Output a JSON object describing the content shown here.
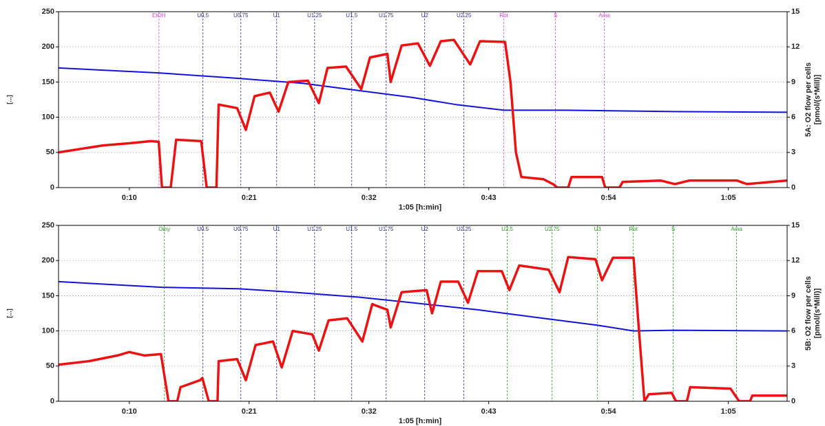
{
  "chart_data": [
    {
      "type": "line",
      "x_label": "1:05 [h:min]",
      "y_label": "[...]",
      "y2_label": [
        "5A: O2 flow per cells",
        "[pmol/(s*Mill)]"
      ],
      "xlim": [
        3.5,
        70.4
      ],
      "xticks": [
        {
          "value": 10,
          "label": "0:10"
        },
        {
          "value": 21,
          "label": "0:21"
        },
        {
          "value": 32,
          "label": "0:32"
        },
        {
          "value": 43,
          "label": "0:43"
        },
        {
          "value": 54,
          "label": "0:54"
        },
        {
          "value": 65,
          "label": "1:05"
        }
      ],
      "ylim": [
        0,
        250
      ],
      "yticks": [
        0,
        50,
        100,
        150,
        200,
        250
      ],
      "y2lim": [
        0,
        15
      ],
      "y2ticks": [
        0,
        3,
        6,
        9,
        12,
        15
      ],
      "grid": true,
      "events": [
        {
          "x": 12.72,
          "label": "EtOH",
          "color": "#e040e0"
        },
        {
          "x": 16.76,
          "label": "U0.5",
          "color": "#303090"
        },
        {
          "x": 20.24,
          "label": "U0.75",
          "color": "#303090"
        },
        {
          "x": 23.53,
          "label": "U1",
          "color": "#303090"
        },
        {
          "x": 27.01,
          "label": "U1.25",
          "color": "#303090"
        },
        {
          "x": 30.42,
          "label": "U1.5",
          "color": "#303090"
        },
        {
          "x": 33.58,
          "label": "U1.75",
          "color": "#303090"
        },
        {
          "x": 37.12,
          "label": "U2",
          "color": "#303090"
        },
        {
          "x": 40.72,
          "label": "U2.25",
          "color": "#303090"
        },
        {
          "x": 44.39,
          "label": "Rot",
          "color": "#e040e0"
        },
        {
          "x": 49.13,
          "label": "S",
          "color": "#e040e0"
        },
        {
          "x": 53.62,
          "label": "Ama",
          "color": "#e040e0"
        }
      ],
      "series": [
        {
          "color": "#1010e0",
          "x": [
            3.5,
            12.7,
            20.2,
            26,
            30,
            36,
            40,
            44.4,
            50,
            60,
            70.4
          ],
          "values": [
            170,
            163,
            155,
            148,
            140,
            128,
            118,
            110,
            110,
            108,
            107
          ]
        },
        {
          "color": "#ee1111",
          "x": [
            3.5,
            7.6,
            10,
            12,
            12.7,
            13.0,
            13.8,
            14.3,
            16.6,
            17.1,
            18.0,
            18.2,
            19.9,
            20.7,
            21.5,
            22.9,
            23.7,
            24.6,
            26.4,
            27.4,
            28.2,
            29.9,
            31.3,
            32.1,
            33.7,
            34.0,
            35.0,
            36.5,
            37.6,
            38.6,
            39.8,
            41.3,
            42.2,
            44.5,
            45.0,
            45.5,
            46.0,
            48.0,
            48.9,
            49.3,
            50.3,
            50.6,
            53.4,
            53.7,
            55.0,
            55.3,
            58.8,
            60.1,
            61.4,
            65.8,
            66.7,
            70.4
          ],
          "values": [
            50,
            60,
            63,
            66,
            65,
            0,
            0,
            68,
            66,
            0,
            0,
            118,
            113,
            82,
            130,
            135,
            108,
            150,
            152,
            120,
            170,
            172,
            140,
            185,
            190,
            150,
            202,
            205,
            173,
            208,
            210,
            175,
            208,
            207,
            150,
            50,
            15,
            12,
            5,
            0,
            0,
            15,
            15,
            0,
            0,
            8,
            10,
            5,
            10,
            10,
            5,
            10
          ]
        }
      ]
    },
    {
      "type": "line",
      "x_label": "1:05 [h:min]",
      "y_label": "[...]",
      "y2_label": [
        "5B: O2 flow per cells",
        "[pmol/(s*Mill)]"
      ],
      "xlim": [
        3.5,
        70.4
      ],
      "xticks": [
        {
          "value": 10,
          "label": "0:10"
        },
        {
          "value": 21,
          "label": "0:21"
        },
        {
          "value": 32,
          "label": "0:32"
        },
        {
          "value": 43,
          "label": "0:43"
        },
        {
          "value": 54,
          "label": "0:54"
        },
        {
          "value": 65,
          "label": "1:05"
        }
      ],
      "ylim": [
        0,
        250
      ],
      "yticks": [
        0,
        50,
        100,
        150,
        200,
        250
      ],
      "y2lim": [
        0,
        15
      ],
      "y2ticks": [
        0,
        3,
        6,
        9,
        12,
        15
      ],
      "grid": true,
      "events": [
        {
          "x": 13.22,
          "label": "Omy",
          "color": "#22a022"
        },
        {
          "x": 16.76,
          "label": "U0.5",
          "color": "#303090"
        },
        {
          "x": 20.24,
          "label": "U0.75",
          "color": "#303090"
        },
        {
          "x": 23.53,
          "label": "U1",
          "color": "#303090"
        },
        {
          "x": 27.01,
          "label": "U1.25",
          "color": "#303090"
        },
        {
          "x": 30.42,
          "label": "U1.5",
          "color": "#303090"
        },
        {
          "x": 33.58,
          "label": "U1.75",
          "color": "#303090"
        },
        {
          "x": 37.12,
          "label": "U2",
          "color": "#303090"
        },
        {
          "x": 40.72,
          "label": "U2.25",
          "color": "#303090"
        },
        {
          "x": 44.7,
          "label": "U2.5",
          "color": "#22a022"
        },
        {
          "x": 48.82,
          "label": "U2.75",
          "color": "#22a022"
        },
        {
          "x": 52.99,
          "label": "U3",
          "color": "#22a022"
        },
        {
          "x": 56.28,
          "label": "Rot",
          "color": "#22a022"
        },
        {
          "x": 59.94,
          "label": "S",
          "color": "#22a022"
        },
        {
          "x": 65.76,
          "label": "Ama",
          "color": "#22a022"
        }
      ],
      "series": [
        {
          "color": "#1010e0",
          "x": [
            3.5,
            13,
            20,
            25,
            31,
            36,
            42,
            48,
            53,
            56.3,
            60,
            70.4
          ],
          "values": [
            170,
            162,
            160,
            155,
            148,
            140,
            130,
            118,
            108,
            100,
            101,
            100
          ]
        },
        {
          "color": "#ee1111",
          "x": [
            3.5,
            6.3,
            8.9,
            10,
            11.4,
            12.9,
            13.6,
            14.4,
            14.7,
            16.5,
            16.7,
            17.3,
            18.1,
            18.2,
            19.9,
            20.7,
            21.6,
            23.2,
            24.0,
            25.0,
            26.8,
            27.4,
            28.3,
            30.0,
            31.4,
            32.3,
            33.7,
            34.0,
            35.0,
            37.3,
            37.8,
            38.6,
            40.2,
            41.1,
            42.0,
            44.2,
            44.9,
            45.8,
            48.5,
            49.5,
            50.3,
            52.8,
            53.4,
            54.4,
            56.3,
            56.8,
            57.3,
            57.7,
            59.8,
            60.2,
            61.2,
            61.5,
            65.2,
            66.0,
            67.0,
            67.2,
            70.4
          ],
          "values": [
            52,
            57,
            65,
            70,
            65,
            67,
            0,
            0,
            20,
            30,
            33,
            0,
            0,
            57,
            60,
            30,
            80,
            85,
            48,
            100,
            95,
            72,
            115,
            118,
            85,
            138,
            130,
            105,
            155,
            158,
            125,
            170,
            170,
            140,
            185,
            185,
            158,
            193,
            187,
            155,
            205,
            202,
            172,
            204,
            204,
            100,
            0,
            10,
            12,
            0,
            0,
            20,
            18,
            0,
            0,
            8,
            8
          ]
        }
      ]
    }
  ]
}
